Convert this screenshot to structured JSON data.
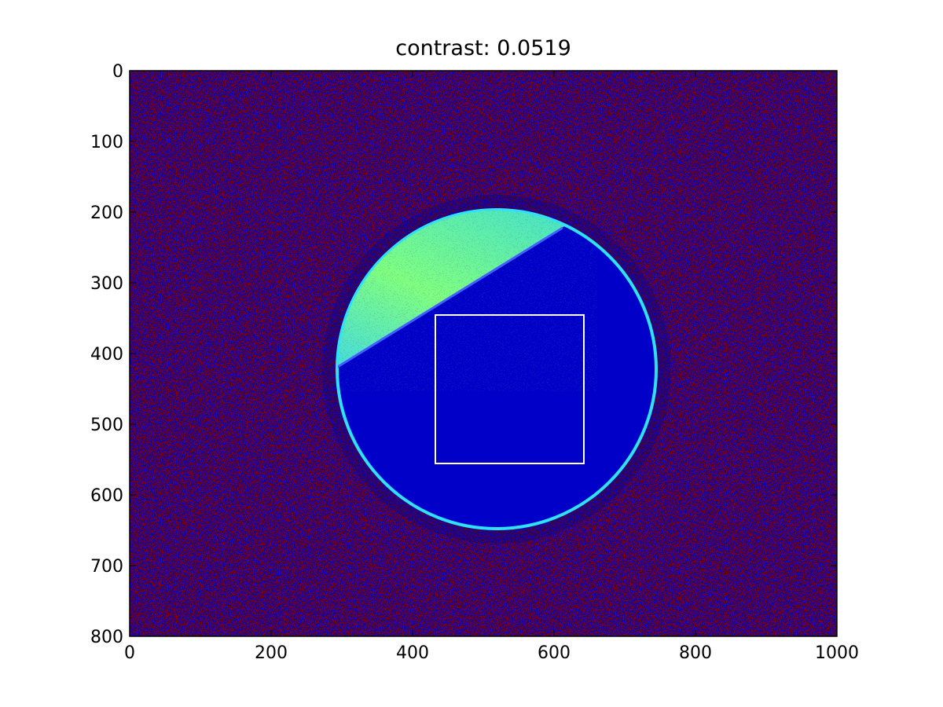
{
  "chart_data": {
    "type": "image",
    "title": "contrast:     0.0519",
    "xlim": [
      0,
      1000
    ],
    "ylim": [
      800,
      0
    ],
    "xticks": [
      0,
      200,
      400,
      600,
      800,
      1000
    ],
    "yticks": [
      0,
      100,
      200,
      300,
      400,
      500,
      600,
      700,
      800
    ]
  }
}
